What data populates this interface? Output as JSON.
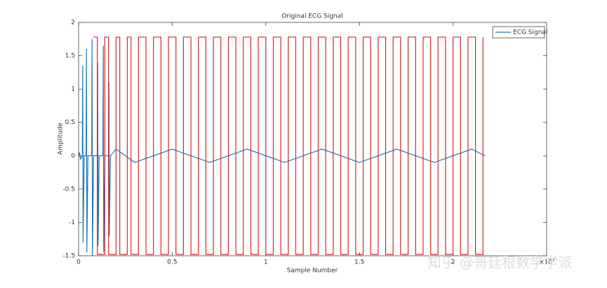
{
  "chart_data": {
    "type": "line",
    "title": "Original ECG Signal",
    "x_label": "Sample Number",
    "y_label": "Amplitude",
    "x_multiplier": "×10⁴",
    "xlim": [
      0,
      2.5
    ],
    "xticks": [
      0,
      0.5,
      1,
      1.5,
      2
    ],
    "ylim": [
      -1.5,
      2
    ],
    "yticks": [
      -1.5,
      -1,
      -0.5,
      0,
      0.5,
      1,
      1.5,
      2
    ],
    "legend_position": "upper-right",
    "series": [
      {
        "name": "ECG Signal",
        "color": "#1f77b4",
        "x": [
          0,
          0.005,
          0.01,
          0.02,
          0.022,
          0.024,
          0.03,
          0.04,
          0.042,
          0.044,
          0.05,
          0.07,
          0.072,
          0.074,
          0.08,
          0.1,
          0.102,
          0.104,
          0.11,
          0.13,
          0.132,
          0.134,
          0.14,
          0.16,
          0.162,
          0.164,
          0.17,
          0.2,
          0.3,
          0.5,
          0.7,
          0.9,
          1.1,
          1.3,
          1.5,
          1.7,
          1.9,
          2.1,
          2.17
        ],
        "values": [
          0,
          0.05,
          -0.05,
          0,
          1.35,
          -1.3,
          0,
          0,
          1.6,
          -1.45,
          0,
          0,
          1.75,
          -1.5,
          0,
          0,
          1.4,
          -1.35,
          0,
          0,
          1.65,
          -1.45,
          0,
          0,
          1.1,
          -1.2,
          0,
          0.1,
          -0.1,
          0.1,
          -0.1,
          0.1,
          -0.1,
          0.1,
          -0.1,
          0.1,
          -0.1,
          0.1,
          0
        ]
      },
      {
        "color": "#d62728",
        "steps": true,
        "x": [
          0.08,
          0.1,
          0.14,
          0.16,
          0.2,
          0.22,
          0.26,
          0.28,
          0.32,
          0.36,
          0.4,
          0.44,
          0.48,
          0.52,
          0.56,
          0.6,
          0.64,
          0.68,
          0.72,
          0.76,
          0.8,
          0.84,
          0.88,
          0.92,
          0.96,
          1,
          1.04,
          1.08,
          1.12,
          1.16,
          1.2,
          1.24,
          1.28,
          1.32,
          1.36,
          1.4,
          1.44,
          1.48,
          1.52,
          1.56,
          1.6,
          1.64,
          1.68,
          1.72,
          1.76,
          1.8,
          1.84,
          1.88,
          1.92,
          1.96,
          2,
          2.04,
          2.08,
          2.12,
          2.16
        ],
        "values": [
          1.78,
          -1.48,
          1.78,
          -1.48,
          1.78,
          -1.48,
          1.78,
          -1.48,
          1.78,
          -1.48,
          1.78,
          -1.48,
          1.78,
          -1.48,
          1.78,
          -1.48,
          1.78,
          -1.48,
          1.78,
          -1.48,
          1.78,
          -1.48,
          1.78,
          -1.48,
          1.78,
          -1.48,
          1.78,
          -1.48,
          1.78,
          -1.48,
          1.78,
          -1.48,
          1.78,
          -1.48,
          1.78,
          -1.48,
          1.78,
          -1.48,
          1.78,
          -1.48,
          1.78,
          -1.48,
          1.78,
          -1.48,
          1.78,
          -1.48,
          1.78,
          -1.48,
          1.78,
          -1.48,
          1.78,
          -1.48,
          1.78,
          -1.48,
          1.78
        ]
      }
    ]
  },
  "watermark": "知乎 @哥廷根数学学派"
}
